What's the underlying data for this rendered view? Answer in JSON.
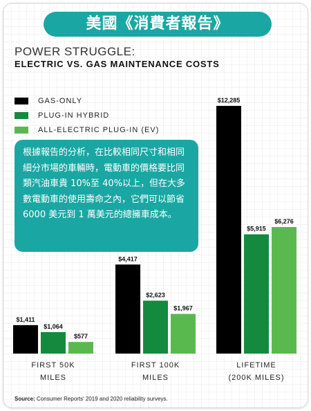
{
  "banner": {
    "title": "美國《消費者報告》"
  },
  "callout": {
    "text": "根據報告的分析，在比較相同尺寸和相同細分市場的車輛時，電動車的價格要比同類汽油車貴 10%至 40%以上，但在大多數電動車的使用壽命之內，它們可以節省 6000 美元到 1 萬美元的總擁車成本。"
  },
  "source": {
    "label": "Source:",
    "text": " Consumer Reports' 2019 and 2020 reliability surveys."
  },
  "colors": {
    "gas": "#000000",
    "hybrid": "#148a3e",
    "ev": "#5ab94e",
    "accent": "#1aa7a3"
  },
  "chart_data": {
    "type": "bar",
    "title": "POWER STRUGGLE:",
    "subtitle": "ELECTRIC VS. GAS MAINTENANCE COSTS",
    "categories": [
      {
        "line1": "FIRST 50K",
        "line2": "MILES"
      },
      {
        "line1": "FIRST 100K",
        "line2": "MILES"
      },
      {
        "line1": "LIFETIME",
        "line2": "(200K MILES)"
      }
    ],
    "series": [
      {
        "name": "GAS-ONLY",
        "values": [
          1411,
          4417,
          12285
        ],
        "labels": [
          "$1,411",
          "$4,417",
          "$12,285"
        ]
      },
      {
        "name": "PLUG-IN HYBRID",
        "values": [
          1064,
          2623,
          5915
        ],
        "labels": [
          "$1,064",
          "$2,623",
          "$5,915"
        ]
      },
      {
        "name": "ALL-ELECTRIC PLUG-IN (EV)",
        "values": [
          577,
          1967,
          6276
        ],
        "labels": [
          "$577",
          "$1,967",
          "$6,276"
        ]
      }
    ],
    "ylim": [
      0,
      12285
    ],
    "legend_position": "top-left",
    "grid": false
  }
}
